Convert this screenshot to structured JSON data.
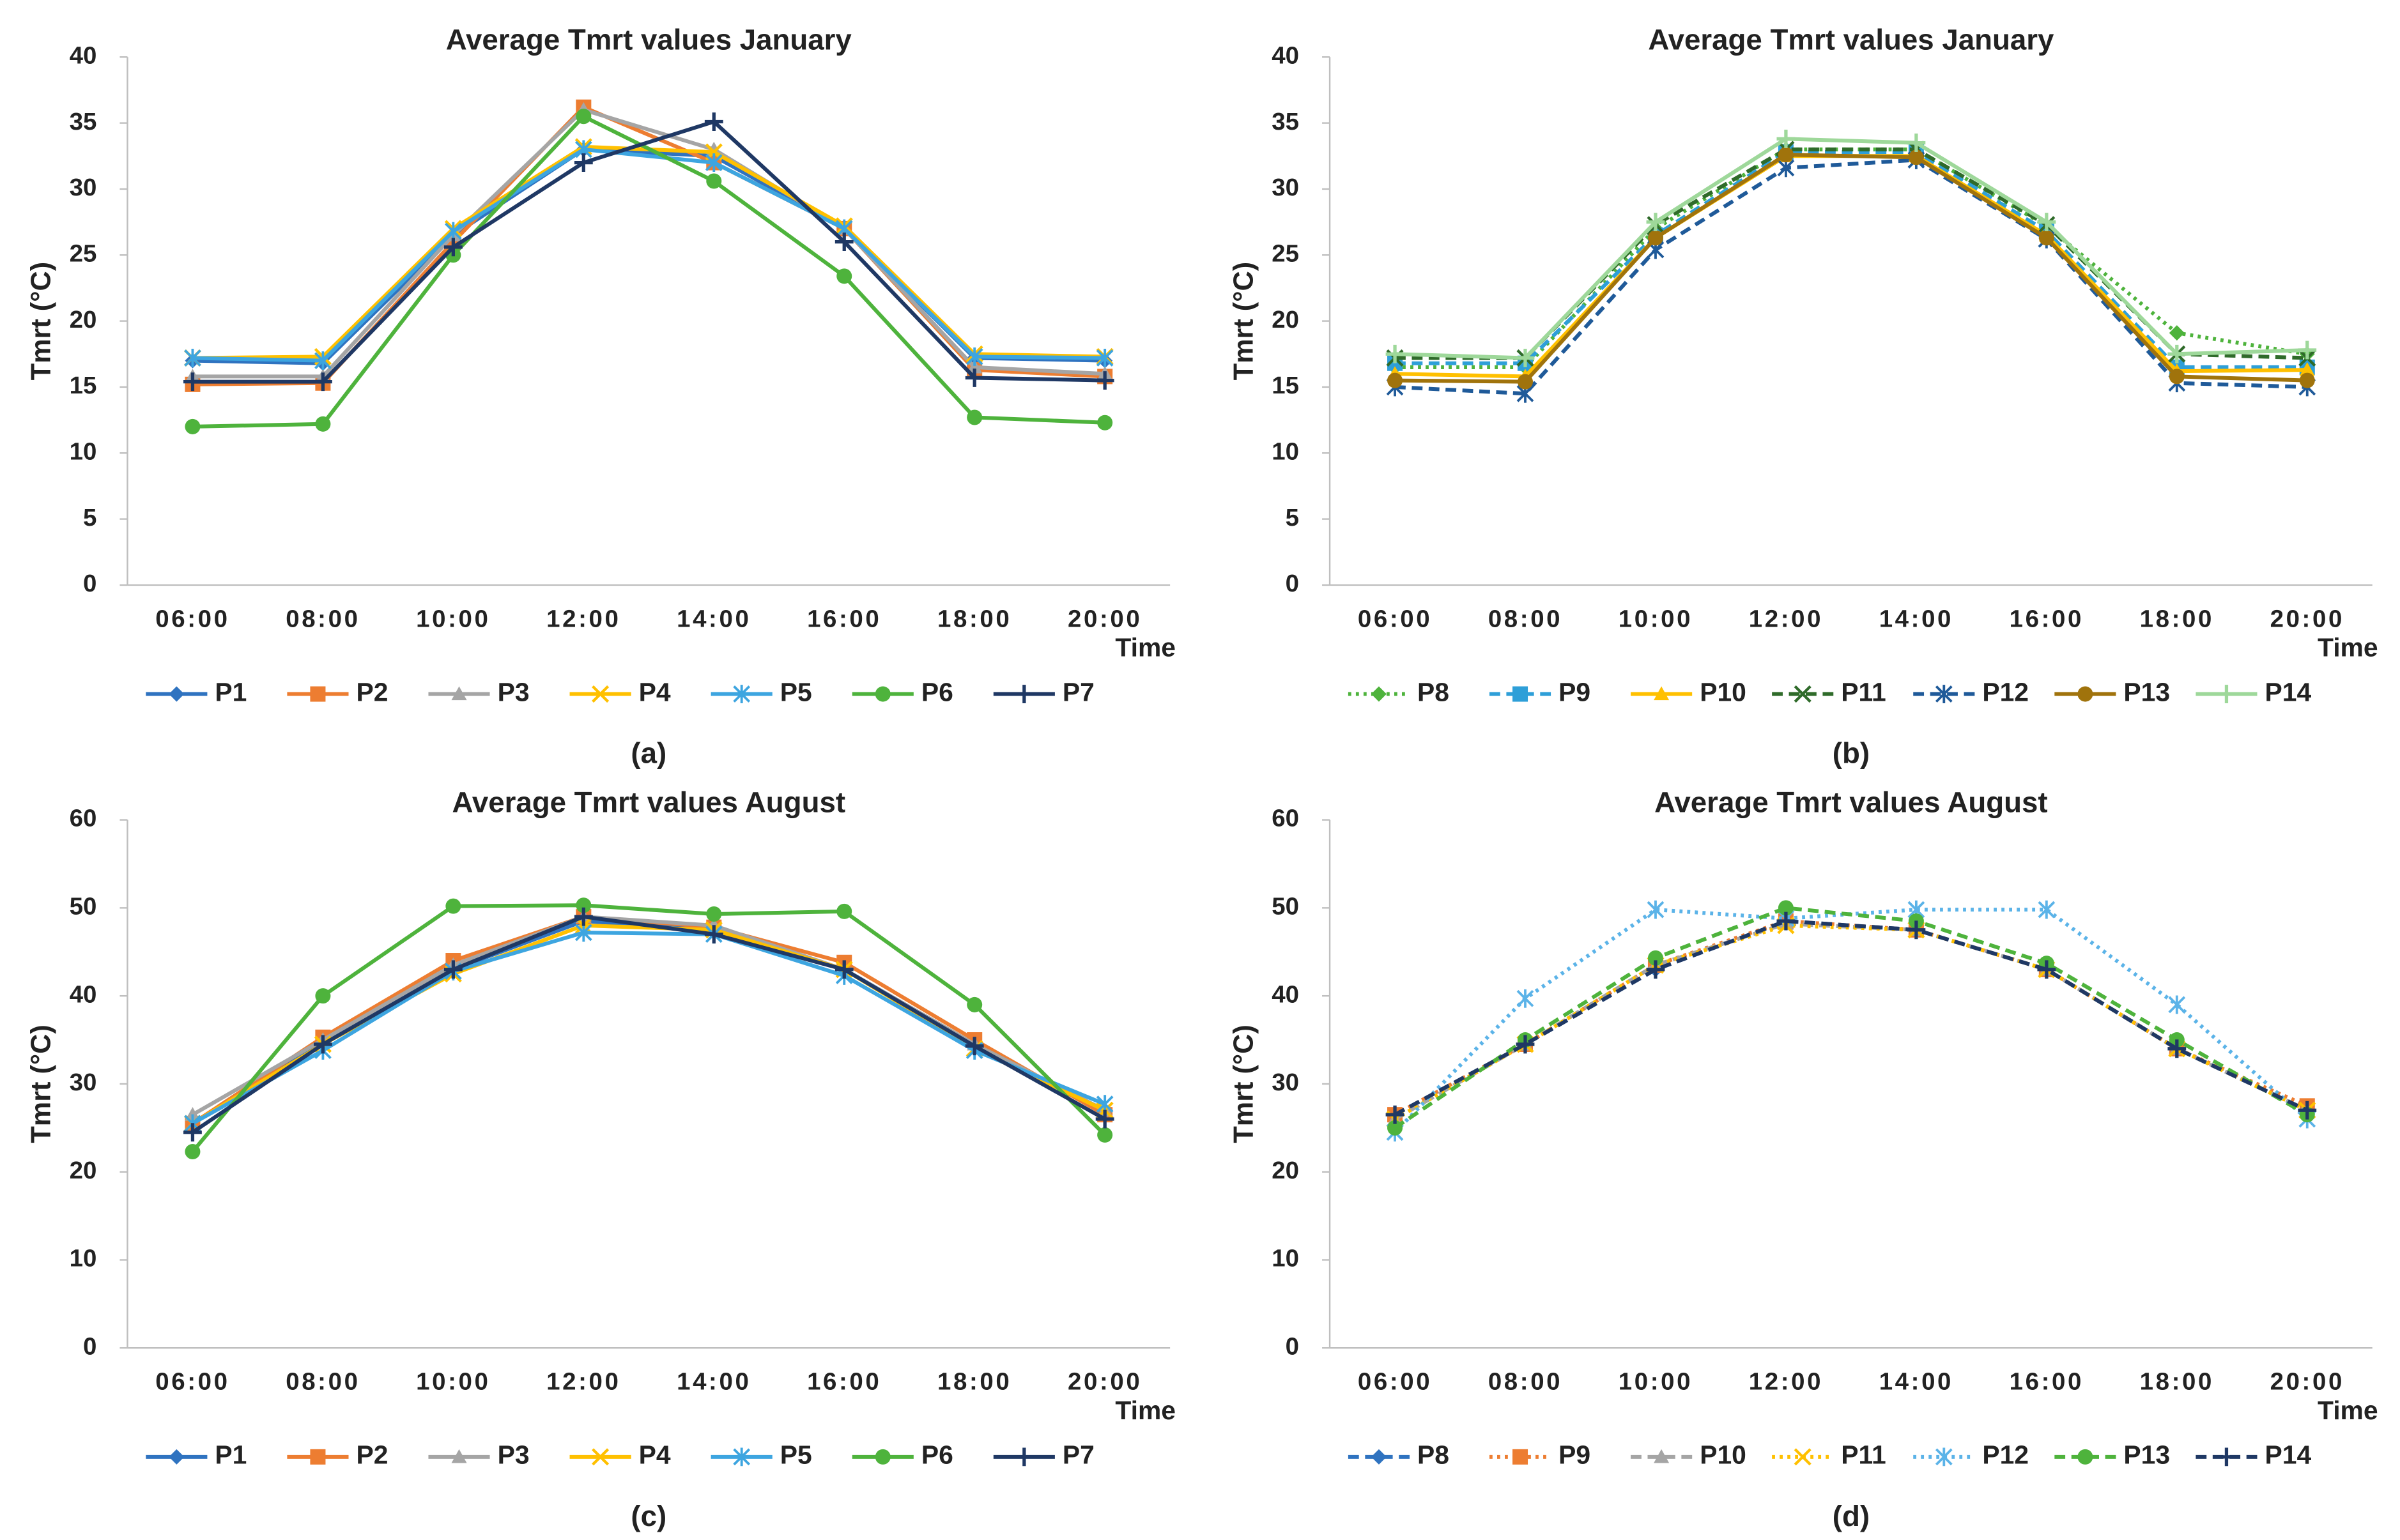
{
  "chart_data": [
    {
      "type": "line",
      "title": "Average Tmrt values January",
      "y_label": "Tmrt (°C)",
      "x_label": "Time",
      "caption": "(a)",
      "categories": [
        "06:00",
        "08:00",
        "10:00",
        "12:00",
        "14:00",
        "16:00",
        "18:00",
        "20:00"
      ],
      "ylim": [
        0,
        40
      ],
      "yticks": [
        0,
        5,
        10,
        15,
        20,
        25,
        30,
        35,
        40
      ],
      "series": [
        {
          "name": "P1",
          "color": "#2f73c0",
          "marker": "diamond",
          "dash": "solid",
          "values": [
            17,
            16.8,
            26.5,
            33,
            32.5,
            27,
            17.2,
            17
          ]
        },
        {
          "name": "P2",
          "color": "#ed7d31",
          "marker": "square",
          "dash": "solid",
          "values": [
            15.2,
            15.3,
            26,
            36.2,
            32,
            27,
            16.3,
            15.8
          ]
        },
        {
          "name": "P3",
          "color": "#a5a5a5",
          "marker": "triangle",
          "dash": "solid",
          "values": [
            15.8,
            15.8,
            26.5,
            36,
            33,
            27,
            16.5,
            16
          ]
        },
        {
          "name": "P4",
          "color": "#ffc000",
          "marker": "x",
          "dash": "solid",
          "values": [
            17.2,
            17.3,
            27,
            33.2,
            32.8,
            27.2,
            17.5,
            17.3
          ]
        },
        {
          "name": "P5",
          "color": "#3da5e0",
          "marker": "star",
          "dash": "solid",
          "values": [
            17.2,
            17,
            26.8,
            33,
            32,
            27,
            17.3,
            17.2
          ]
        },
        {
          "name": "P6",
          "color": "#4eb33c",
          "marker": "circle",
          "dash": "solid",
          "values": [
            12,
            12.2,
            25,
            35.5,
            30.6,
            23.4,
            12.7,
            12.3
          ]
        },
        {
          "name": "P7",
          "color": "#1f3864",
          "marker": "plus",
          "dash": "solid",
          "values": [
            15.4,
            15.4,
            25.6,
            32,
            35.1,
            26,
            15.7,
            15.5
          ]
        }
      ]
    },
    {
      "type": "line",
      "title": "Average Tmrt values January",
      "y_label": "Tmrt (°C)",
      "x_label": "Time",
      "caption": "(b)",
      "categories": [
        "06:00",
        "08:00",
        "10:00",
        "12:00",
        "14:00",
        "16:00",
        "18:00",
        "20:00"
      ],
      "ylim": [
        0,
        40
      ],
      "yticks": [
        0,
        5,
        10,
        15,
        20,
        25,
        30,
        35,
        40
      ],
      "series": [
        {
          "name": "P8",
          "color": "#4eb33c",
          "marker": "diamond",
          "dash": "dotted",
          "values": [
            16.5,
            16.5,
            27,
            33,
            33,
            27.2,
            19.1,
            17.5
          ]
        },
        {
          "name": "P9",
          "color": "#2e9fd8",
          "marker": "square",
          "dash": "dashed",
          "values": [
            16.8,
            16.8,
            26.5,
            32.8,
            32.8,
            26.8,
            16.5,
            16.5
          ]
        },
        {
          "name": "P10",
          "color": "#ffc000",
          "marker": "triangle",
          "dash": "solid",
          "values": [
            16,
            15.8,
            26.3,
            32.5,
            32.5,
            26.5,
            16.2,
            16.3
          ]
        },
        {
          "name": "P11",
          "color": "#2f6b2a",
          "marker": "x",
          "dash": "dashed",
          "values": [
            17.2,
            17.2,
            27.3,
            33,
            33,
            27.3,
            17.5,
            17.2
          ]
        },
        {
          "name": "P12",
          "color": "#1f5a99",
          "marker": "star",
          "dash": "dashed",
          "values": [
            15,
            14.5,
            25.4,
            31.6,
            32.2,
            26.2,
            15.3,
            15
          ]
        },
        {
          "name": "P13",
          "color": "#a0730c",
          "marker": "circle",
          "dash": "solid",
          "values": [
            15.5,
            15.4,
            26.3,
            32.6,
            32.4,
            26.3,
            15.8,
            15.5
          ]
        },
        {
          "name": "P14",
          "color": "#9ed89a",
          "marker": "plus",
          "dash": "solid",
          "values": [
            17.5,
            17.2,
            27.5,
            33.8,
            33.5,
            27.5,
            17.5,
            17.8
          ]
        }
      ]
    },
    {
      "type": "line",
      "title": "Average Tmrt values August",
      "y_label": "Tmrt (°C)",
      "x_label": "Time",
      "caption": "(c)",
      "categories": [
        "06:00",
        "08:00",
        "10:00",
        "12:00",
        "14:00",
        "16:00",
        "18:00",
        "20:00"
      ],
      "ylim": [
        0,
        60
      ],
      "yticks": [
        0,
        10,
        20,
        30,
        40,
        50,
        60
      ],
      "series": [
        {
          "name": "P1",
          "color": "#2f73c0",
          "marker": "diamond",
          "dash": "solid",
          "values": [
            25.5,
            35,
            43,
            48.5,
            47.5,
            43,
            34.5,
            27
          ]
        },
        {
          "name": "P2",
          "color": "#ed7d31",
          "marker": "square",
          "dash": "solid",
          "values": [
            25.5,
            35.3,
            44,
            49,
            47.8,
            43.8,
            35,
            26.5
          ]
        },
        {
          "name": "P3",
          "color": "#a5a5a5",
          "marker": "triangle",
          "dash": "solid",
          "values": [
            26.5,
            35,
            43.5,
            49,
            48,
            43,
            34.5,
            27
          ]
        },
        {
          "name": "P4",
          "color": "#ffc000",
          "marker": "x",
          "dash": "solid",
          "values": [
            25.5,
            34.5,
            42.5,
            48,
            47.5,
            43,
            34,
            27
          ]
        },
        {
          "name": "P5",
          "color": "#3da5e0",
          "marker": "star",
          "dash": "solid",
          "values": [
            25.5,
            33.8,
            42.8,
            47.2,
            47,
            42.3,
            33.8,
            27.7
          ]
        },
        {
          "name": "P6",
          "color": "#4eb33c",
          "marker": "circle",
          "dash": "solid",
          "values": [
            22.3,
            40,
            50.2,
            50.3,
            49.3,
            49.6,
            39,
            24.2
          ]
        },
        {
          "name": "P7",
          "color": "#1f3864",
          "marker": "plus",
          "dash": "solid",
          "values": [
            24.5,
            34.5,
            43,
            49,
            47,
            43,
            34.3,
            26
          ]
        }
      ]
    },
    {
      "type": "line",
      "title": "Average Tmrt values August",
      "y_label": "Tmrt (°C)",
      "x_label": "Time",
      "caption": "(d)",
      "categories": [
        "06:00",
        "08:00",
        "10:00",
        "12:00",
        "14:00",
        "16:00",
        "18:00",
        "20:00"
      ],
      "ylim": [
        0,
        60
      ],
      "yticks": [
        0,
        10,
        20,
        30,
        40,
        50,
        60
      ],
      "series": [
        {
          "name": "P8",
          "color": "#2f73c0",
          "marker": "diamond",
          "dash": "dashed",
          "values": [
            26.5,
            34.5,
            43,
            48.5,
            47.5,
            43,
            34,
            27
          ]
        },
        {
          "name": "P9",
          "color": "#ed7d31",
          "marker": "square",
          "dash": "dotted",
          "values": [
            26.5,
            34.5,
            43.5,
            48.5,
            47.5,
            43,
            34,
            27.5
          ]
        },
        {
          "name": "P10",
          "color": "#a5a5a5",
          "marker": "triangle",
          "dash": "dashed",
          "values": [
            26,
            34.5,
            43.5,
            48.2,
            47.5,
            43,
            34,
            27
          ]
        },
        {
          "name": "P11",
          "color": "#ffc000",
          "marker": "x",
          "dash": "dotted",
          "values": [
            26,
            34.5,
            43.5,
            48,
            47.5,
            43,
            34,
            27
          ]
        },
        {
          "name": "P12",
          "color": "#5bb3e8",
          "marker": "star",
          "dash": "dotted",
          "values": [
            24.5,
            39.7,
            49.8,
            48.8,
            49.8,
            49.8,
            39,
            26
          ]
        },
        {
          "name": "P13",
          "color": "#4eb33c",
          "marker": "circle",
          "dash": "dashed",
          "values": [
            25,
            35,
            44.3,
            50,
            48.5,
            43.7,
            35,
            26.5
          ]
        },
        {
          "name": "P14",
          "color": "#1f3864",
          "marker": "plus",
          "dash": "dashed",
          "values": [
            26.5,
            34.5,
            43,
            48.5,
            47.5,
            43,
            34,
            27
          ]
        }
      ]
    }
  ]
}
